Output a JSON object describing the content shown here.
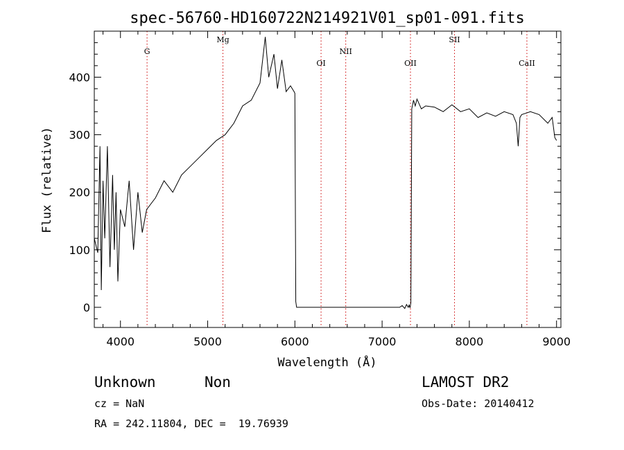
{
  "chart_data": {
    "type": "line",
    "title": "spec-56760-HD160722N214921V01_sp01-091.fits",
    "xlabel": "Wavelength (Å)",
    "ylabel": "Flux (relative)",
    "xlim": [
      3700,
      9050
    ],
    "ylim": [
      -35,
      480
    ],
    "xticks": [
      4000,
      5000,
      6000,
      7000,
      8000,
      9000
    ],
    "yticks": [
      0,
      100,
      200,
      300,
      400
    ],
    "grid": false,
    "line_color": "#000000",
    "marker_color": "#cc0000",
    "lines": [
      {
        "name": "G",
        "wavelength": 4305
      },
      {
        "name": "Mg",
        "wavelength": 5175
      },
      {
        "name": "OI",
        "wavelength": 6300
      },
      {
        "name": "NII",
        "wavelength": 6583
      },
      {
        "name": "OII",
        "wavelength": 7325
      },
      {
        "name": "SII",
        "wavelength": 7830
      },
      {
        "name": "CaII",
        "wavelength": 8660
      }
    ],
    "series": [
      {
        "x": [
          3700,
          3740,
          3765,
          3780,
          3800,
          3820,
          3850,
          3880,
          3910,
          3930,
          3950,
          3970,
          4000,
          4050,
          4100,
          4150,
          4200,
          4250,
          4300,
          4400,
          4500,
          4600,
          4700,
          4800,
          4900,
          5000,
          5100,
          5200,
          5300,
          5400,
          5500,
          5600,
          5660,
          5700,
          5760,
          5800,
          5850,
          5900,
          5950,
          5990,
          6000,
          6010,
          6020,
          6200,
          6400,
          6600,
          6800,
          7000,
          7200,
          7230,
          7260,
          7280,
          7300,
          7310,
          7320,
          7330,
          7340,
          7360,
          7380,
          7400,
          7450,
          7500,
          7600,
          7700,
          7800,
          7900,
          8000,
          8100,
          8200,
          8300,
          8400,
          8500,
          8540,
          8560,
          8580,
          8600,
          8700,
          8800,
          8900,
          8950,
          8980,
          9000
        ],
        "y": [
          120,
          95,
          280,
          30,
          220,
          120,
          280,
          70,
          230,
          100,
          200,
          45,
          170,
          140,
          220,
          100,
          200,
          130,
          170,
          190,
          220,
          200,
          230,
          245,
          260,
          275,
          290,
          300,
          320,
          350,
          360,
          390,
          470,
          400,
          440,
          380,
          430,
          375,
          385,
          375,
          372,
          10,
          0,
          0,
          0,
          0,
          0,
          0,
          0,
          3,
          -2,
          5,
          0,
          4,
          -1,
          8,
          345,
          360,
          350,
          362,
          345,
          350,
          348,
          340,
          352,
          340,
          345,
          330,
          338,
          332,
          340,
          335,
          320,
          280,
          330,
          335,
          340,
          335,
          320,
          330,
          295,
          290
        ]
      }
    ]
  },
  "info": {
    "object_class": "Unknown",
    "subclass": "Non",
    "cz_text": "cz = NaN",
    "coords_text": "RA = 242.11804, DEC =  19.76939",
    "survey": "LAMOST DR2",
    "obs_date_text": "Obs-Date: 20140412"
  }
}
